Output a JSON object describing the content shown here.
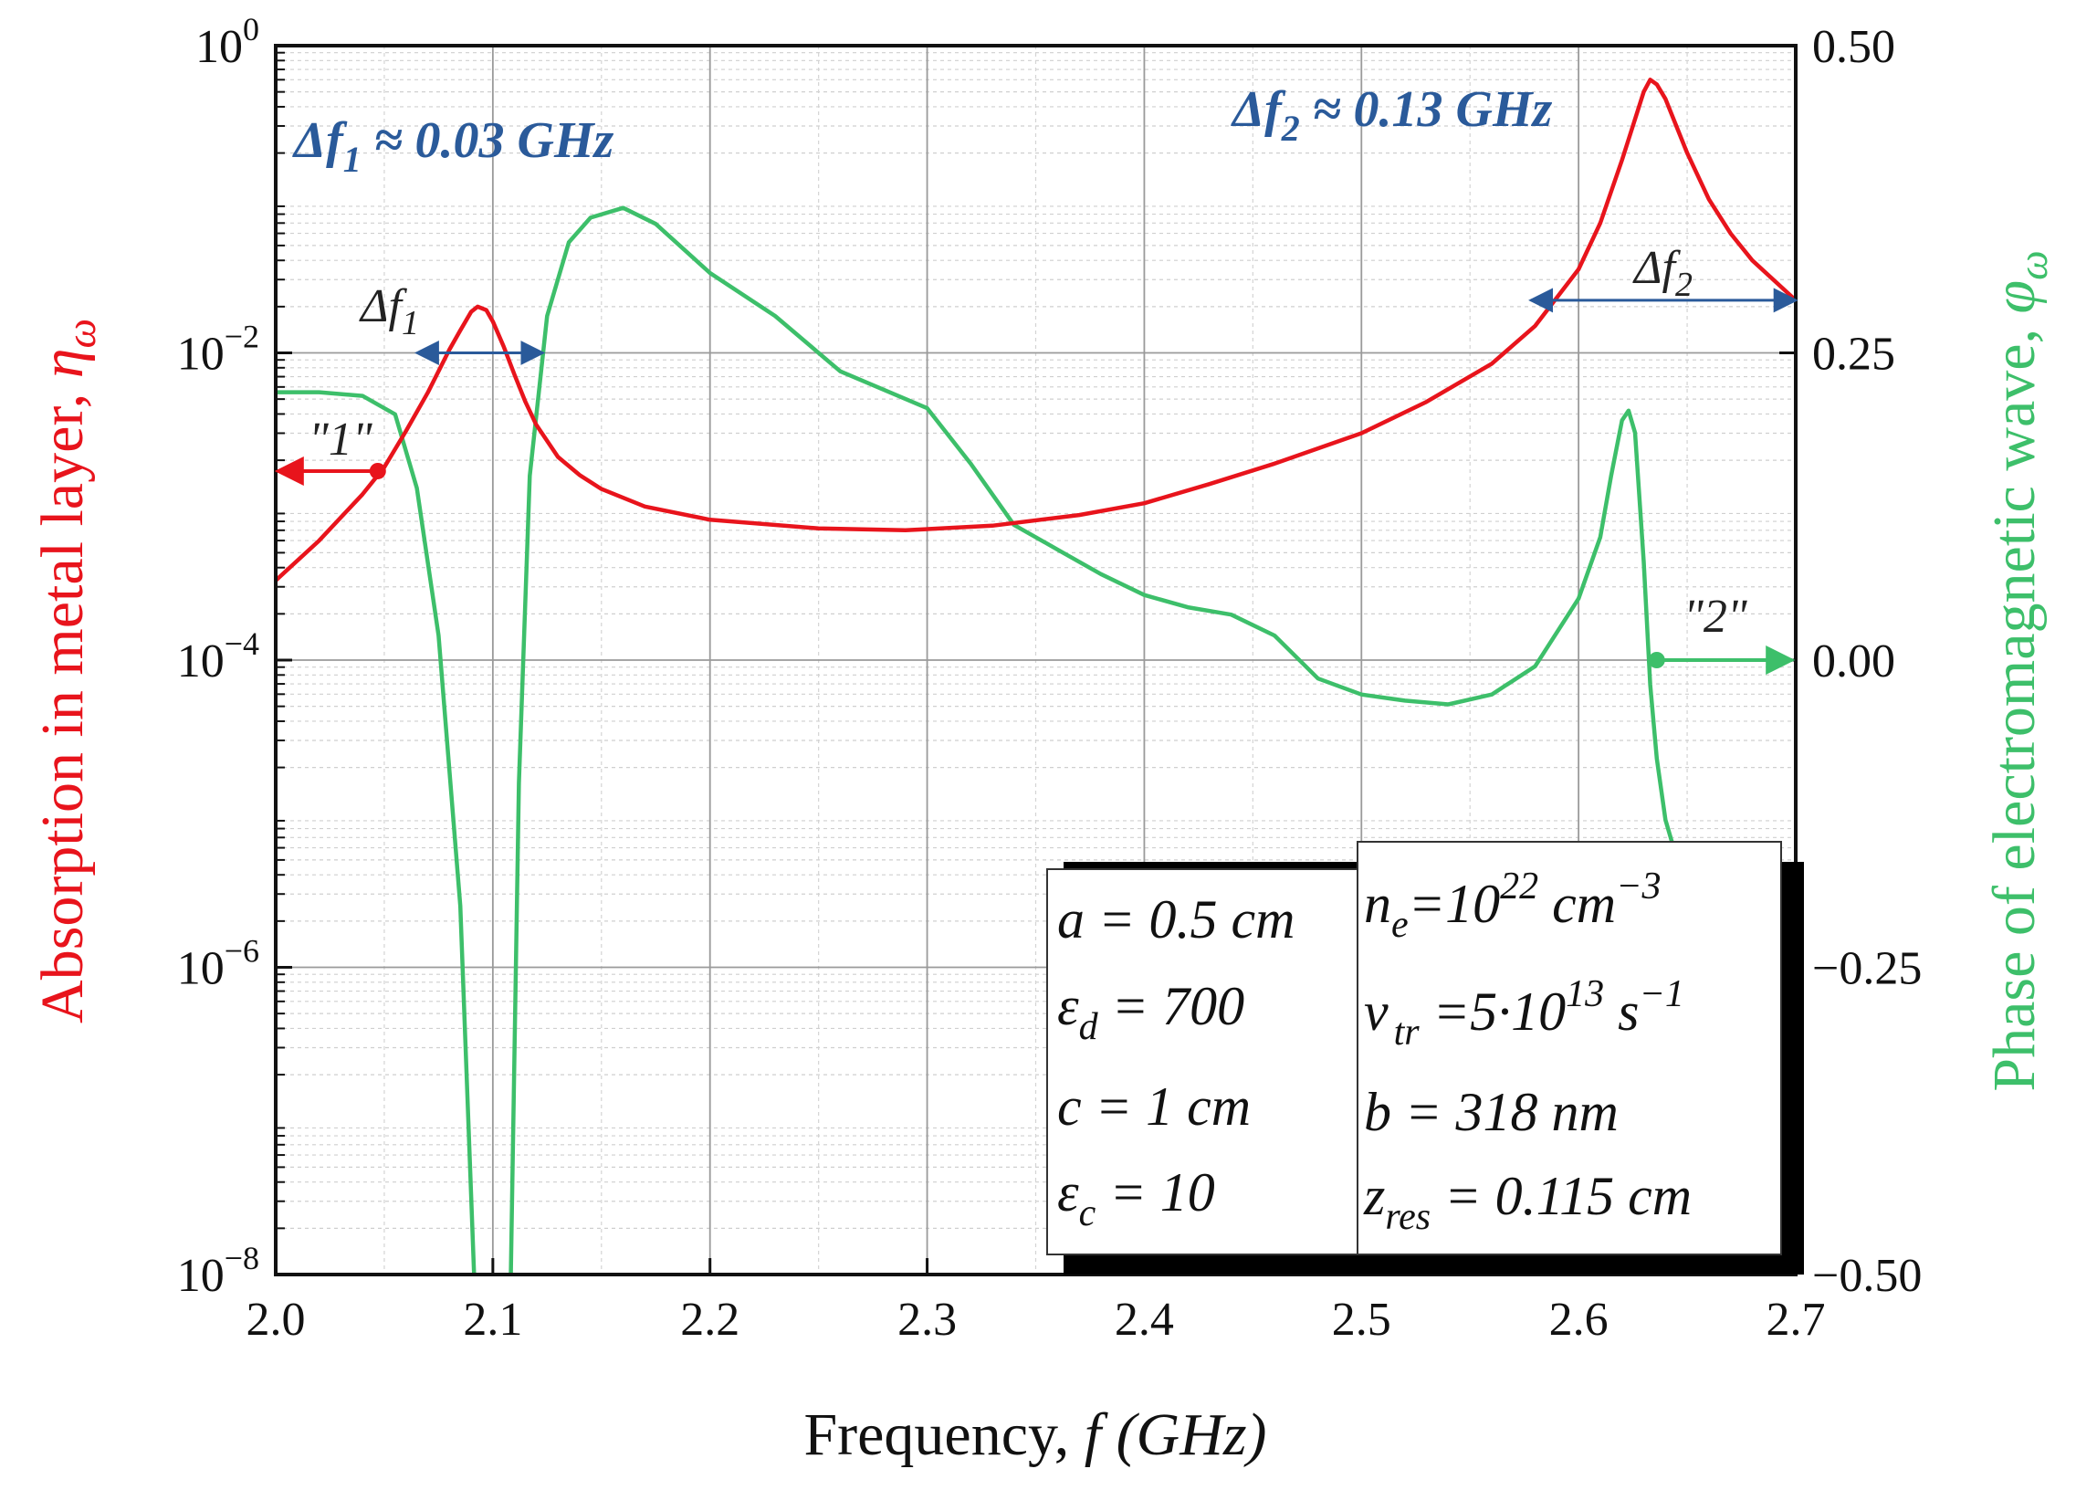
{
  "chart_data": {
    "type": "line",
    "xlabel": "Frequency, f (GHz)",
    "xlabel_main": "Frequency, ",
    "xlabel_italic": "f (GHz)",
    "xlim": [
      2.0,
      2.7
    ],
    "xticks": [
      2.0,
      2.1,
      2.2,
      2.3,
      2.4,
      2.5,
      2.6,
      2.7
    ],
    "xtick_labels": [
      "2.0",
      "2.1",
      "2.2",
      "2.3",
      "2.4",
      "2.5",
      "2.6",
      "2.7"
    ],
    "y_left": {
      "label": "Absorption in metal layer, ηω",
      "label_main": "Absorption in metal layer, ",
      "label_symbol": "η",
      "label_sub": "ω",
      "scale": "log",
      "lim": [
        1e-08,
        1
      ],
      "ticks": [
        1e-08,
        1e-06,
        0.0001,
        0.01,
        1
      ],
      "tick_bases": [
        "10",
        "10",
        "10",
        "10",
        "10"
      ],
      "tick_exps": [
        "−8",
        "−6",
        "−4",
        "−2",
        "0"
      ],
      "color": "#e8141c"
    },
    "y_right": {
      "label": "Phase of electromagnetic wave, φω",
      "label_main": "Phase of electromagnetic wave, ",
      "label_symbol": "φ",
      "label_sub": "ω",
      "lim": [
        -0.5,
        0.5
      ],
      "ticks": [
        -0.5,
        -0.25,
        0.0,
        0.25,
        0.5
      ],
      "tick_labels": [
        "−0.50",
        "−0.25",
        "0.00",
        "0.25",
        "0.50"
      ],
      "color": "#3dbf6a"
    },
    "grid": true,
    "series": [
      {
        "name": "Absorption η_ω",
        "axis": "left",
        "color": "#e8141c",
        "x": [
          2.0,
          2.02,
          2.04,
          2.05,
          2.06,
          2.07,
          2.08,
          2.085,
          2.09,
          2.093,
          2.097,
          2.1,
          2.105,
          2.11,
          2.115,
          2.12,
          2.13,
          2.14,
          2.15,
          2.17,
          2.2,
          2.25,
          2.29,
          2.33,
          2.37,
          2.4,
          2.43,
          2.46,
          2.5,
          2.53,
          2.56,
          2.58,
          2.6,
          2.61,
          2.62,
          2.625,
          2.63,
          2.633,
          2.636,
          2.64,
          2.645,
          2.65,
          2.66,
          2.67,
          2.68,
          2.7
        ],
        "y": [
          0.00033,
          0.0006,
          0.0012,
          0.0018,
          0.0031,
          0.0055,
          0.0105,
          0.014,
          0.0185,
          0.02,
          0.019,
          0.016,
          0.011,
          0.0072,
          0.0048,
          0.0034,
          0.0021,
          0.0016,
          0.0013,
          0.001,
          0.00082,
          0.00072,
          0.0007,
          0.00075,
          0.00088,
          0.00105,
          0.0014,
          0.0019,
          0.003,
          0.0048,
          0.0085,
          0.015,
          0.035,
          0.07,
          0.18,
          0.3,
          0.5,
          0.6,
          0.56,
          0.45,
          0.3,
          0.2,
          0.1,
          0.06,
          0.04,
          0.022
        ]
      },
      {
        "name": "Phase φ_ω",
        "axis": "right",
        "color": "#3dbf6a",
        "x": [
          2.0,
          2.02,
          2.04,
          2.055,
          2.065,
          2.075,
          2.085,
          2.092,
          2.094,
          2.095,
          2.106,
          2.108,
          2.112,
          2.117,
          2.125,
          2.135,
          2.145,
          2.16,
          2.175,
          2.2,
          2.23,
          2.26,
          2.3,
          2.32,
          2.34,
          2.36,
          2.38,
          2.4,
          2.42,
          2.44,
          2.46,
          2.48,
          2.5,
          2.52,
          2.54,
          2.56,
          2.58,
          2.6,
          2.61,
          2.615,
          2.62,
          2.623,
          2.626,
          2.63,
          2.633,
          2.636,
          2.64,
          2.643
        ],
        "y": [
          0.218,
          0.218,
          0.215,
          0.2,
          0.14,
          0.02,
          -0.2,
          -0.5,
          -0.5,
          -0.5,
          -0.5,
          -0.5,
          -0.1,
          0.15,
          0.28,
          0.34,
          0.36,
          0.368,
          0.355,
          0.315,
          0.28,
          0.235,
          0.205,
          0.16,
          0.11,
          0.09,
          0.07,
          0.053,
          0.043,
          0.037,
          0.02,
          -0.015,
          -0.028,
          -0.033,
          -0.036,
          -0.028,
          -0.005,
          0.05,
          0.1,
          0.15,
          0.195,
          0.203,
          0.185,
          0.08,
          -0.02,
          -0.08,
          -0.13,
          -0.148
        ]
      }
    ],
    "markers": [
      {
        "name": "1",
        "label": "\"1\"",
        "x": 2.047,
        "axis": "left",
        "y": 0.0017,
        "color": "#e8141c",
        "direction": "left"
      },
      {
        "name": "2",
        "label": "\"2\"",
        "x": 2.636,
        "axis": "right",
        "y": 0.0,
        "color": "#3dbf6a",
        "direction": "right"
      }
    ],
    "bandwidth_arrows": [
      {
        "name": "f1",
        "label_sym": "Δf",
        "label_sub": "1",
        "x_from": 2.065,
        "x_to": 2.123,
        "y": 0.01,
        "axis": "left"
      },
      {
        "name": "f2",
        "label_sym": "Δf",
        "label_sub": "2",
        "x_from": 2.578,
        "x_to": 2.7,
        "y": 0.022,
        "axis": "left"
      }
    ],
    "annotations": {
      "df1": {
        "sym": "Δf",
        "sub": "1",
        "rest": " ≈ 0.03 GHz"
      },
      "df2": {
        "sym": "Δf",
        "sub": "2",
        "rest": " ≈ 0.13 GHz"
      }
    },
    "params_left": [
      {
        "sym": "a",
        "sub": "",
        "rest": " = 0.5 cm"
      },
      {
        "sym": "ε",
        "sub": "d",
        "rest": " = 700"
      },
      {
        "sym": "c",
        "sub": "",
        "rest": " = 1 cm"
      },
      {
        "sym": "ε",
        "sub": "c",
        "rest": " = 10"
      }
    ],
    "params_right": {
      "ne": {
        "sym": "n",
        "sub": "e",
        "mid": "=10",
        "exp": "22",
        "unit": " cm",
        "unit_exp": "−3"
      },
      "nu": {
        "sym": "ν",
        "sub": "tr",
        "mid": " =5·10",
        "exp": "13",
        "unit": " s",
        "unit_exp": "−1"
      },
      "b": {
        "sym": "b",
        "sub": "",
        "rest": " = 318 nm"
      },
      "z": {
        "sym": "z",
        "sub": "res",
        "rest": " = 0.115 cm"
      }
    }
  }
}
